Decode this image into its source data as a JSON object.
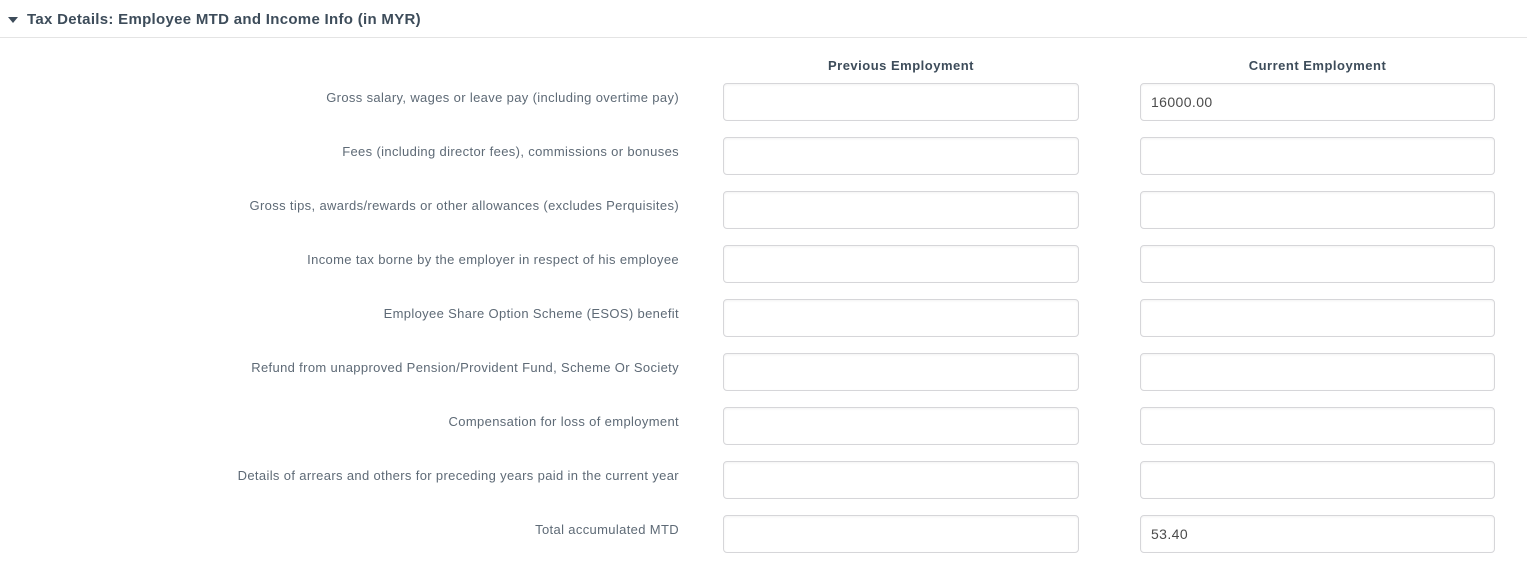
{
  "section": {
    "title": "Tax Details: Employee MTD and Income Info (in MYR)",
    "collapse_icon": "triangle-down",
    "collapsed": false
  },
  "columns": {
    "previous": "Previous Employment",
    "current": "Current Employment"
  },
  "rows": [
    {
      "label": "Gross salary, wages or leave pay (including overtime pay)",
      "previous": "",
      "current": "16000.00"
    },
    {
      "label": "Fees (including director fees), commissions or bonuses",
      "previous": "",
      "current": ""
    },
    {
      "label": "Gross tips, awards/rewards or other allowances (excludes Perquisites)",
      "previous": "",
      "current": ""
    },
    {
      "label": "Income tax borne by the employer in respect of his employee",
      "previous": "",
      "current": ""
    },
    {
      "label": "Employee Share Option Scheme (ESOS) benefit",
      "previous": "",
      "current": ""
    },
    {
      "label": "Refund from unapproved Pension/Provident Fund, Scheme Or Society",
      "previous": "",
      "current": ""
    },
    {
      "label": "Compensation for loss of employment",
      "previous": "",
      "current": ""
    },
    {
      "label": "Details of arrears and others for preceding years paid in the current year",
      "previous": "",
      "current": ""
    },
    {
      "label": "Total accumulated MTD",
      "previous": "",
      "current": "53.40"
    }
  ],
  "colors": {
    "title_text": "#3d4c5a",
    "label_text": "#5e6a76",
    "value_text": "#4b4b4b",
    "input_border": "#d6d6d9",
    "divider": "#e4e4e4",
    "background": "#ffffff"
  }
}
